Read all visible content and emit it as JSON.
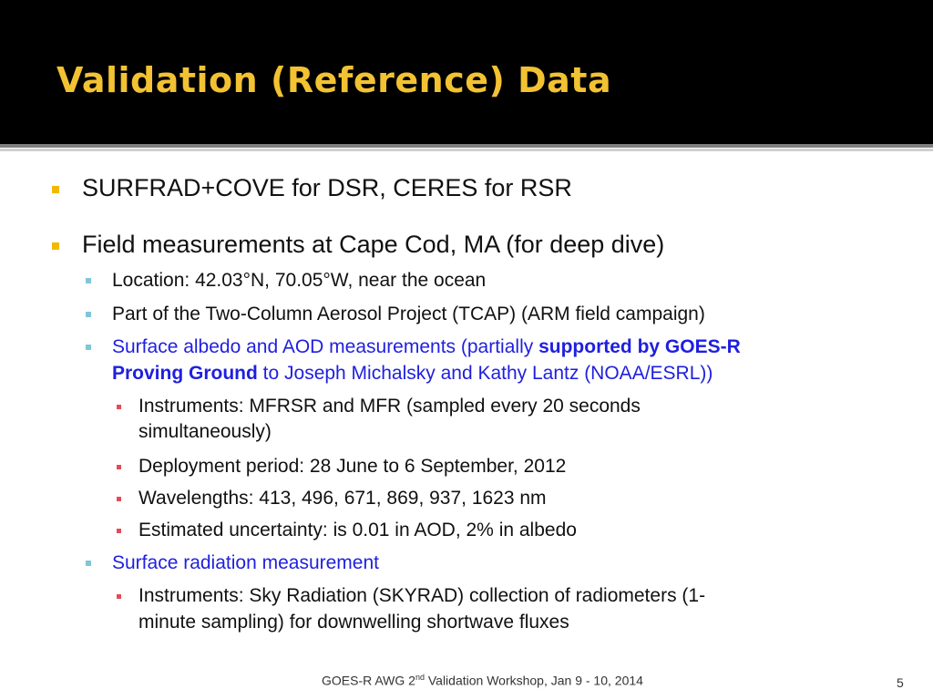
{
  "slide": {
    "title": "Validation (Reference) Data",
    "bullets": {
      "b1": "SURFRAD+COVE for DSR, CERES for RSR",
      "b2": "Field measurements at Cape Cod, MA (for deep dive)",
      "b2_1": "Location: 42.03°N, 70.05°W, near the ocean",
      "b2_2": "Part of  the Two-Column Aerosol Project (TCAP) (ARM field campaign)",
      "b2_3_a": "Surface albedo and AOD measurements (partially ",
      "b2_3_b": "supported by GOES-R",
      "b2_3_c": "Proving Ground",
      "b2_3_d": " to Joseph Michalsky and Kathy Lantz (NOAA/ESRL))",
      "b2_3_1_a": "Instruments: MFRSR and MFR (sampled every 20 seconds",
      "b2_3_1_b": "simultaneously)",
      "b2_3_2": "Deployment period: 28 June to 6 September, 2012",
      "b2_3_3": "Wavelengths: 413, 496, 671, 869, 937, 1623 nm",
      "b2_3_4": "Estimated uncertainty: is 0.01 in AOD, 2% in albedo",
      "b2_4": "Surface radiation measurement",
      "b2_4_1_a": "Instruments: Sky Radiation (SKYRAD) collection of radiometers (1-",
      "b2_4_1_b": "minute sampling) for downwelling shortwave fluxes"
    },
    "footer": {
      "pre": "GOES-R AWG 2",
      "sup": "nd",
      "post": " Validation Workshop, Jan 9 - 10, 2014"
    },
    "page_number": "5"
  },
  "colors": {
    "title": "#f2c232",
    "header_bg": "#000000",
    "link_blue": "#1f1fdf"
  }
}
